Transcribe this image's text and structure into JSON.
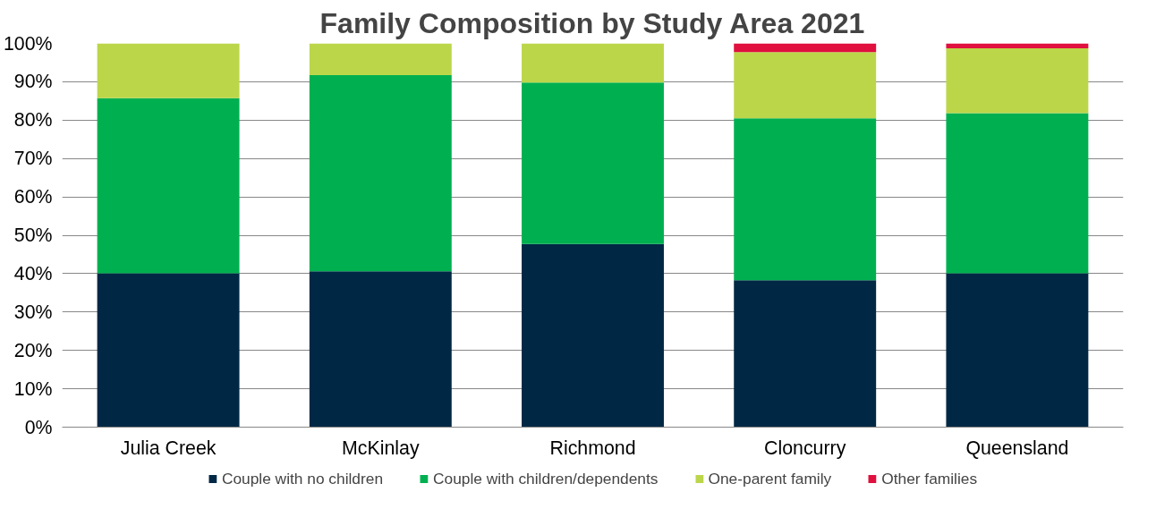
{
  "chart_data": {
    "type": "bar",
    "title": "Family Composition by Study Area 2021",
    "categories": [
      "Julia Creek",
      "McKinlay",
      "Richmond",
      "Cloncurry",
      "Queensland"
    ],
    "stacked": true,
    "ylim": [
      0,
      100
    ],
    "yticks": [
      {
        "value": 0,
        "label": "0%"
      },
      {
        "value": 10,
        "label": "10%"
      },
      {
        "value": 20,
        "label": "20%"
      },
      {
        "value": 30,
        "label": "30%"
      },
      {
        "value": 40,
        "label": "40%"
      },
      {
        "value": 50,
        "label": "50%"
      },
      {
        "value": 60,
        "label": "60%"
      },
      {
        "value": 70,
        "label": "70%"
      },
      {
        "value": 80,
        "label": "80%"
      },
      {
        "value": 90,
        "label": "90%"
      },
      {
        "value": 100,
        "label": "100%"
      }
    ],
    "grid": "y",
    "legend": "bottom",
    "series": [
      {
        "name": "Couple with no children",
        "color": "#002845",
        "values": [
          40.1,
          40.6,
          47.7,
          38.3,
          40.1
        ]
      },
      {
        "name": "Couple with children/dependents",
        "color": "#00b050",
        "values": [
          45.6,
          51.1,
          42.1,
          42.2,
          41.7
        ]
      },
      {
        "name": "One-parent family",
        "color": "#bcd64a",
        "values": [
          14.3,
          8.3,
          10.2,
          17.2,
          16.9
        ]
      },
      {
        "name": "Other families",
        "color": "#e0103f",
        "values": [
          0,
          0,
          0,
          2.3,
          1.3
        ]
      }
    ]
  }
}
